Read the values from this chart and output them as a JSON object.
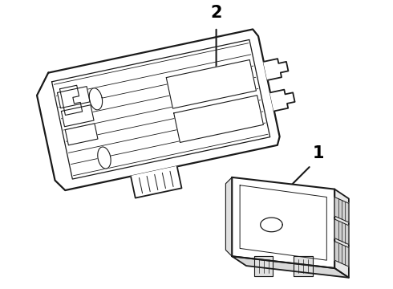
{
  "bg_color": "#ffffff",
  "line_color": "#1a1a1a",
  "line_width": 1.3,
  "part1_label": "1",
  "part2_label": "2",
  "figsize": [
    4.9,
    3.6
  ],
  "dpi": 100
}
